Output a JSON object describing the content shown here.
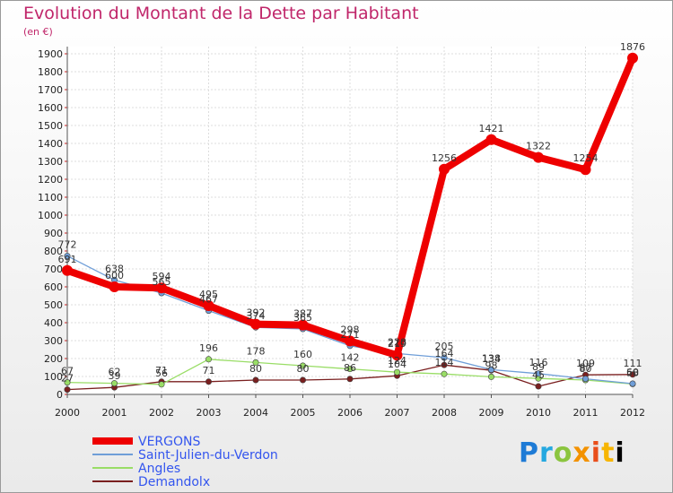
{
  "title": "Evolution du Montant de la Dette par Habitant",
  "unit": "(en €)",
  "logo": "Proxiti",
  "chart_data": {
    "type": "line",
    "x": [
      "2000",
      "2001",
      "2002",
      "2003",
      "2004",
      "2005",
      "2006",
      "2007",
      "2008",
      "2009",
      "2010",
      "2011",
      "2012"
    ],
    "ylim": [
      0,
      1900
    ],
    "yticks": [
      0,
      100,
      200,
      300,
      400,
      500,
      600,
      700,
      800,
      900,
      1000,
      1100,
      1200,
      1300,
      1400,
      1500,
      1600,
      1700,
      1800,
      1900
    ],
    "grid": true,
    "legend_position": "bottom-left",
    "series": [
      {
        "name": "VERGONS",
        "color": "#ee0000",
        "values": [
          691,
          600,
          594,
          495,
          392,
          387,
          298,
          219,
          1256,
          1421,
          1322,
          1254,
          1876
        ]
      },
      {
        "name": "Saint-Julien-du-Verdon",
        "color": "#6f9ed8",
        "values": [
          772,
          638,
          565,
          467,
          374,
          365,
          271,
          228,
          205,
          138,
          116,
          87,
          60
        ]
      },
      {
        "name": "Angles",
        "color": "#99dd66",
        "values": [
          67,
          62,
          56,
          196,
          178,
          160,
          142,
          124,
          114,
          98,
          89,
          80,
          58
        ]
      },
      {
        "name": "Demandolx",
        "color": "#7a1f1f",
        "values": [
          27,
          39,
          71,
          71,
          80,
          80,
          86,
          104,
          164,
          134,
          45,
          109,
          111
        ]
      }
    ]
  }
}
